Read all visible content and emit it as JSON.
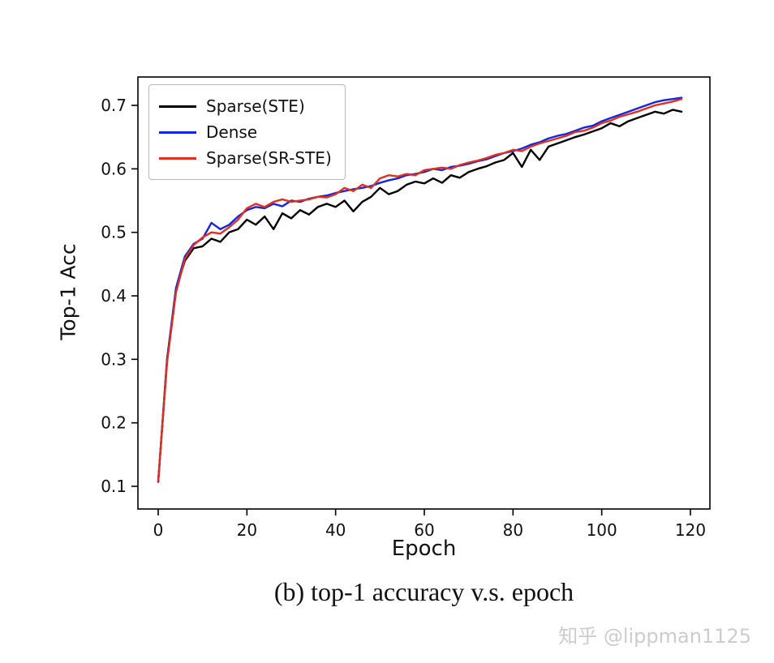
{
  "caption": "(b) top-1 accuracy v.s. epoch",
  "watermark": "知乎 @lippman1125",
  "chart_data": {
    "type": "line",
    "title": "",
    "xlabel": "Epoch",
    "ylabel": "Top-1 Acc",
    "xlim": [
      -5,
      125
    ],
    "ylim": [
      0.06,
      0.74
    ],
    "xticks": [
      0,
      20,
      40,
      60,
      80,
      100,
      120
    ],
    "yticks": [
      0.1,
      0.2,
      0.3,
      0.4,
      0.5,
      0.6,
      0.7
    ],
    "grid": false,
    "legend_position": "upper left",
    "x": [
      0,
      2,
      4,
      6,
      8,
      10,
      12,
      14,
      16,
      18,
      20,
      22,
      24,
      26,
      28,
      30,
      32,
      34,
      36,
      38,
      40,
      42,
      44,
      46,
      48,
      50,
      52,
      54,
      56,
      58,
      60,
      62,
      64,
      66,
      68,
      70,
      72,
      74,
      76,
      78,
      80,
      82,
      84,
      86,
      88,
      90,
      92,
      94,
      96,
      98,
      100,
      102,
      104,
      106,
      108,
      110,
      112,
      114,
      116,
      118
    ],
    "series": [
      {
        "name": "Sparse(STE)",
        "color": "#000000",
        "values": [
          0.107,
          0.3,
          0.41,
          0.455,
          0.475,
          0.478,
          0.49,
          0.485,
          0.5,
          0.505,
          0.52,
          0.512,
          0.525,
          0.505,
          0.53,
          0.522,
          0.535,
          0.528,
          0.54,
          0.545,
          0.54,
          0.55,
          0.533,
          0.548,
          0.556,
          0.57,
          0.56,
          0.565,
          0.575,
          0.58,
          0.577,
          0.585,
          0.578,
          0.59,
          0.586,
          0.595,
          0.6,
          0.604,
          0.61,
          0.614,
          0.625,
          0.603,
          0.63,
          0.614,
          0.635,
          0.64,
          0.645,
          0.65,
          0.654,
          0.659,
          0.664,
          0.672,
          0.667,
          0.675,
          0.68,
          0.685,
          0.69,
          0.687,
          0.693,
          0.69
        ]
      },
      {
        "name": "Dense",
        "color": "#1425e0",
        "values": [
          0.107,
          0.3,
          0.412,
          0.462,
          0.482,
          0.49,
          0.515,
          0.505,
          0.512,
          0.525,
          0.535,
          0.54,
          0.538,
          0.545,
          0.541,
          0.55,
          0.548,
          0.553,
          0.556,
          0.558,
          0.562,
          0.565,
          0.568,
          0.57,
          0.573,
          0.578,
          0.582,
          0.585,
          0.59,
          0.592,
          0.595,
          0.6,
          0.598,
          0.603,
          0.605,
          0.608,
          0.612,
          0.615,
          0.62,
          0.625,
          0.628,
          0.632,
          0.638,
          0.642,
          0.648,
          0.652,
          0.655,
          0.66,
          0.665,
          0.668,
          0.675,
          0.68,
          0.685,
          0.69,
          0.695,
          0.7,
          0.705,
          0.708,
          0.71,
          0.712
        ]
      },
      {
        "name": "Sparse(SR-STE)",
        "color": "#e0301e",
        "values": [
          0.108,
          0.295,
          0.405,
          0.458,
          0.48,
          0.492,
          0.5,
          0.498,
          0.508,
          0.52,
          0.538,
          0.545,
          0.54,
          0.548,
          0.552,
          0.548,
          0.55,
          0.552,
          0.556,
          0.555,
          0.56,
          0.57,
          0.565,
          0.575,
          0.57,
          0.585,
          0.59,
          0.588,
          0.592,
          0.59,
          0.598,
          0.6,
          0.602,
          0.6,
          0.606,
          0.61,
          0.613,
          0.617,
          0.622,
          0.625,
          0.63,
          0.628,
          0.635,
          0.64,
          0.644,
          0.648,
          0.652,
          0.658,
          0.66,
          0.665,
          0.672,
          0.676,
          0.682,
          0.686,
          0.69,
          0.695,
          0.7,
          0.703,
          0.706,
          0.71
        ]
      }
    ]
  }
}
